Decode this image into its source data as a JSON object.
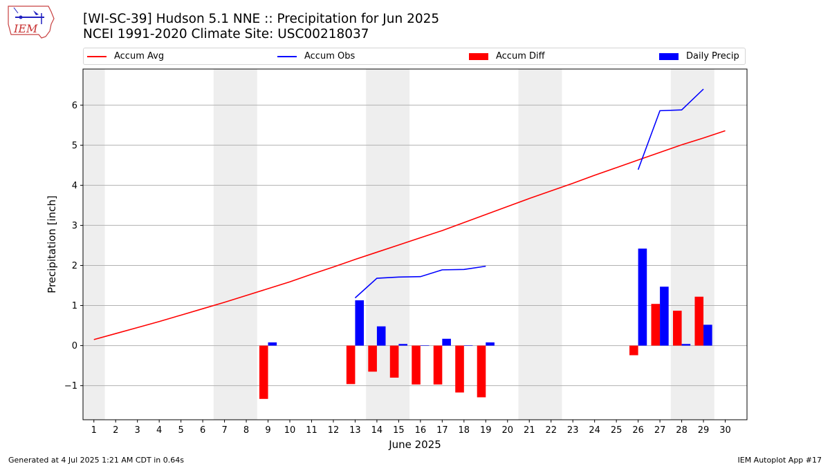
{
  "page": {
    "title_line1": "[WI-SC-39] Hudson 5.1 NNE :: Precipitation for Jun 2025",
    "title_line2": "NCEI 1991-2020 Climate Site: USC00218037",
    "logo_text": "IEM",
    "footer_left": "Generated at 4 Jul 2025 1:21 AM CDT in 0.64s",
    "footer_right": "IEM Autoplot App #17"
  },
  "legend": {
    "accum_avg": "Accum Avg",
    "accum_obs": "Accum Obs",
    "accum_diff": "Accum Diff",
    "daily_precip": "Daily Precip"
  },
  "colors": {
    "accum_avg": "#ff0000",
    "accum_obs": "#0000ff",
    "accum_diff": "#ff0000",
    "daily_precip": "#0000ff",
    "weekend_band": "#eeeeee",
    "grid": "#b0b0b0"
  },
  "chart_data": {
    "type": "bar",
    "xlabel": "June 2025",
    "ylabel": "Precipitation [inch]",
    "xlim": [
      0.5,
      31
    ],
    "ylim": [
      -1.85,
      6.9
    ],
    "xticks": [
      1,
      2,
      3,
      4,
      5,
      6,
      7,
      8,
      9,
      10,
      11,
      12,
      13,
      14,
      15,
      16,
      17,
      18,
      19,
      20,
      21,
      22,
      23,
      24,
      25,
      26,
      27,
      28,
      29,
      30
    ],
    "yticks": [
      -1,
      0,
      1,
      2,
      3,
      4,
      5,
      6
    ],
    "ytick_labels": [
      "−1",
      "0",
      "1",
      "2",
      "3",
      "4",
      "5",
      "6"
    ],
    "grid": "horizontal",
    "legend_position": "top",
    "weekend_bands": [
      [
        0.5,
        1.5
      ],
      [
        6.5,
        8.5
      ],
      [
        13.5,
        15.5
      ],
      [
        20.5,
        22.5
      ],
      [
        27.5,
        29.5
      ]
    ],
    "accum_avg": {
      "days": [
        1,
        2,
        3,
        4,
        5,
        6,
        7,
        8,
        9,
        10,
        11,
        12,
        13,
        14,
        15,
        16,
        17,
        18,
        19,
        20,
        21,
        22,
        23,
        24,
        25,
        26,
        27,
        28,
        29,
        30
      ],
      "values": [
        0.15,
        0.3,
        0.45,
        0.6,
        0.76,
        0.92,
        1.08,
        1.25,
        1.42,
        1.59,
        1.78,
        1.96,
        2.15,
        2.33,
        2.51,
        2.69,
        2.87,
        3.07,
        3.27,
        3.47,
        3.67,
        3.86,
        4.05,
        4.25,
        4.44,
        4.63,
        4.82,
        5.01,
        5.18,
        5.36
      ]
    },
    "accum_obs": {
      "segments": [
        {
          "days": [
            13,
            14,
            15,
            16,
            17,
            18,
            19
          ],
          "values": [
            1.19,
            1.68,
            1.71,
            1.72,
            1.89,
            1.9,
            1.98
          ]
        },
        {
          "days": [
            26,
            27,
            28,
            29
          ],
          "values": [
            4.39,
            5.86,
            5.88,
            6.4
          ]
        }
      ]
    },
    "accum_diff": {
      "days": [
        9,
        13,
        14,
        15,
        16,
        17,
        18,
        19,
        26,
        27,
        28,
        29
      ],
      "values": [
        -1.33,
        -0.96,
        -0.65,
        -0.8,
        -0.97,
        -0.97,
        -1.17,
        -1.29,
        -0.24,
        1.04,
        0.87,
        1.22
      ]
    },
    "daily_precip": {
      "days": [
        9,
        13,
        14,
        15,
        16,
        17,
        18,
        19,
        26,
        27,
        28,
        29
      ],
      "values": [
        0.08,
        1.13,
        0.48,
        0.04,
        0.01,
        0.17,
        0.01,
        0.08,
        2.42,
        1.47,
        0.04,
        0.52
      ]
    }
  }
}
